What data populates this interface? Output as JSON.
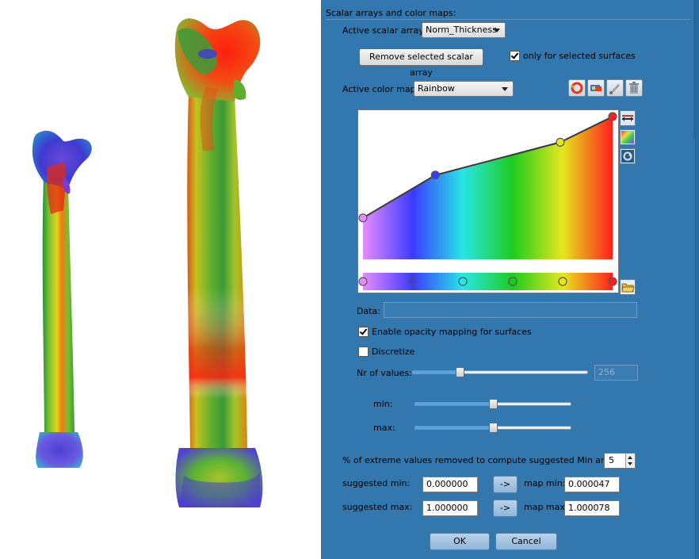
{
  "panel": {
    "section_title": "Scalar arrays and color maps:",
    "active_scalar_label": "Active scalar array:",
    "active_scalar_value": "Norm_Thickness",
    "remove_button_label": "Remove selected scalar array",
    "only_selected_label": "only for selected surfaces",
    "only_selected_checked": true,
    "active_colormap_label": "Active color map:",
    "active_colormap_value": "Rainbow",
    "data_label": "Data:",
    "data_value": "",
    "opacity_label": "Enable opacity mapping for surfaces",
    "opacity_checked": true,
    "discretize_label": "Discretize",
    "discretize_checked": false,
    "nr_values_label": "Nr of values:",
    "nr_values_value": "256",
    "nr_values_slider": 0.26,
    "min_label": "min:",
    "min_slider": 0.5,
    "max_label": "max:",
    "max_slider": 0.5,
    "extreme_label": "% of extreme values removed to compute suggested Min and Max:",
    "extreme_value": "5",
    "suggested_min_label": "suggested min:",
    "suggested_min_value": "0.000000",
    "suggested_max_label": "suggested max:",
    "suggested_max_value": "1.000000",
    "arrow_min_label": "->",
    "arrow_max_label": "->",
    "map_min_label": "map min:",
    "map_min_value": "0.000047",
    "map_max_label": "map max:",
    "map_max_value": "1.000078",
    "ok_label": "OK",
    "cancel_label": "Cancel"
  },
  "colormap": {
    "stops": [
      "#e68cff",
      "#3b3bff",
      "#27e6e6",
      "#1ecc1e",
      "#e6e61e",
      "#ff1e1e"
    ],
    "opacity_points": [
      0.0,
      0.29,
      0.79,
      1.0
    ],
    "opacity_values": [
      0.29,
      0.59,
      0.82,
      1.0
    ]
  },
  "icons": {
    "colormap_buttons": [
      "reverse-colors-icon",
      "edit-colormap-icon",
      "brush-icon",
      "trash-icon"
    ],
    "side_buttons": [
      "spread-icon",
      "rainbow-icon",
      "refresh-icon",
      "folder-icon"
    ]
  }
}
